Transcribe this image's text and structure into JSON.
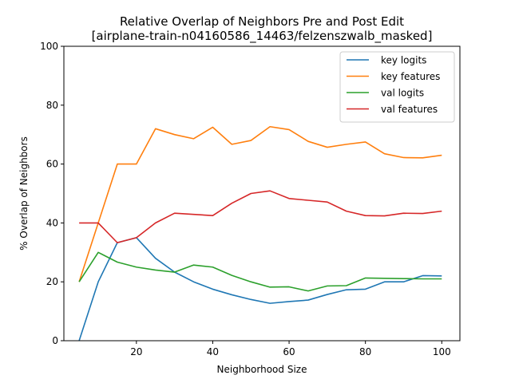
{
  "chart_data": {
    "type": "line",
    "title": "Relative Overlap of Neighbors Pre and Post Edit",
    "subtitle": "[airplane-train-n04160586_14463/felzenszwalb_masked]",
    "xlabel": "Neighborhood Size",
    "ylabel": "% Overlap of Neighbors",
    "xlim": [
      1,
      104.75
    ],
    "ylim": [
      0,
      100
    ],
    "xticks": [
      20,
      40,
      60,
      80,
      100
    ],
    "yticks": [
      0,
      20,
      40,
      60,
      80,
      100
    ],
    "legend_position": "top-right",
    "x": [
      5,
      10,
      15,
      20,
      25,
      30,
      35,
      40,
      45,
      50,
      55,
      60,
      65,
      70,
      75,
      80,
      85,
      90,
      95,
      100
    ],
    "series": [
      {
        "name": "key logits",
        "color": "#1f77b4",
        "values": [
          0,
          20,
          33.3,
          35,
          28,
          23.3,
          20,
          17.5,
          15.6,
          14,
          12.7,
          13.3,
          13.8,
          15.7,
          17.3,
          17.5,
          20,
          20,
          22.1,
          22
        ]
      },
      {
        "name": "key features",
        "color": "#ff7f0e",
        "values": [
          20,
          40,
          60,
          60,
          72,
          70,
          68.6,
          72.5,
          66.7,
          68,
          72.7,
          71.7,
          67.7,
          65.7,
          66.7,
          67.5,
          63.5,
          62.2,
          62.1,
          63
        ]
      },
      {
        "name": "val logits",
        "color": "#2ca02c",
        "values": [
          20,
          30,
          26.7,
          25,
          24,
          23.3,
          25.7,
          25,
          22.2,
          20,
          18.2,
          18.3,
          16.9,
          18.6,
          18.7,
          21.3,
          21.2,
          21.1,
          21,
          21
        ]
      },
      {
        "name": "val features",
        "color": "#d62728",
        "values": [
          40,
          40,
          33.3,
          35,
          40,
          43.3,
          42.9,
          42.5,
          46.7,
          50,
          50.9,
          48.3,
          47.7,
          47.1,
          44,
          42.5,
          42.4,
          43.3,
          43.2,
          44
        ]
      }
    ]
  }
}
